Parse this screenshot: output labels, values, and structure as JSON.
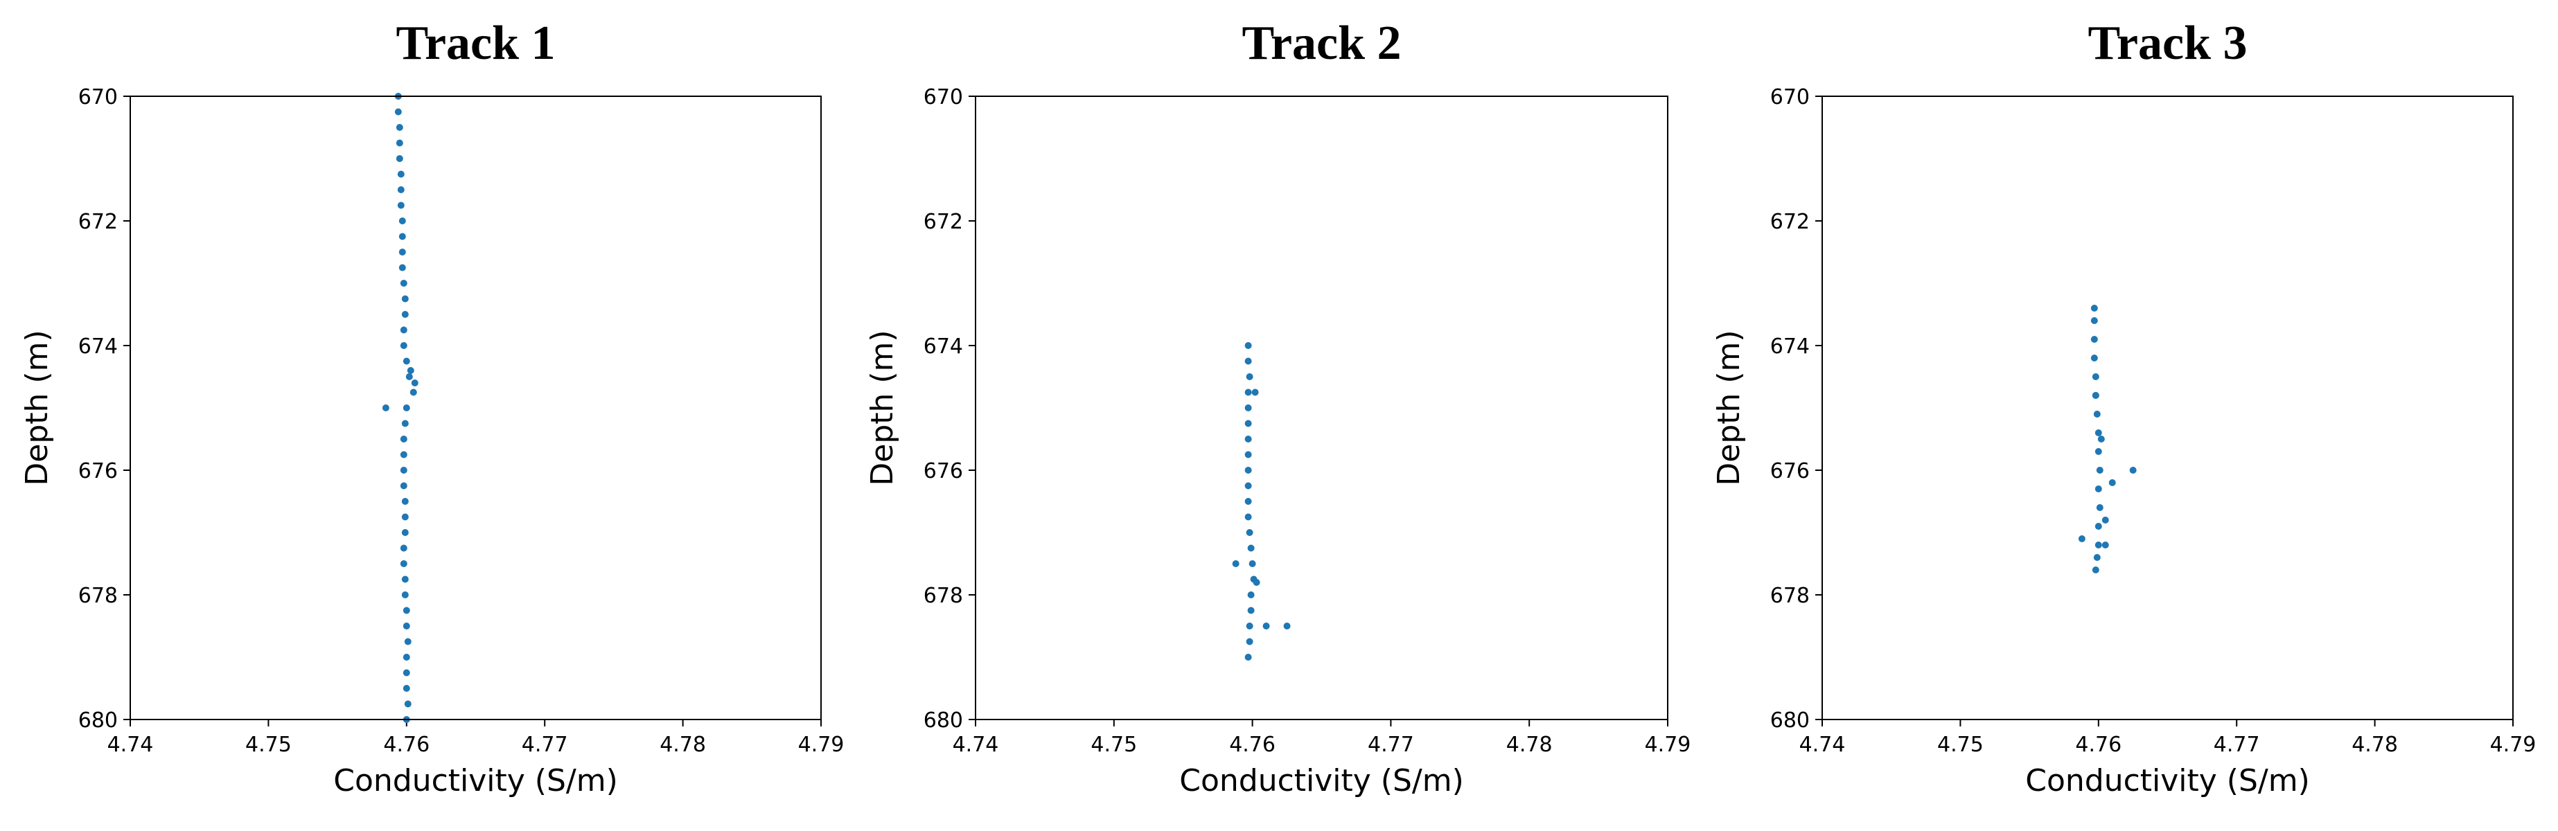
{
  "chart_data": [
    {
      "type": "scatter",
      "title": "Track 1",
      "xlabel": "Conductivity (S/m)",
      "ylabel": "Depth (m)",
      "color": "#1f77b4",
      "xlim": [
        4.74,
        4.79
      ],
      "xticks": [
        4.74,
        4.75,
        4.76,
        4.77,
        4.78,
        4.79
      ],
      "ylim": [
        670,
        680
      ],
      "yticks": [
        670,
        672,
        674,
        676,
        678,
        680
      ],
      "y_inverted": true,
      "x": [
        4.7594,
        4.7594,
        4.7595,
        4.7595,
        4.7595,
        4.7596,
        4.7596,
        4.7596,
        4.7597,
        4.7597,
        4.7597,
        4.7597,
        4.7598,
        4.7599,
        4.7599,
        4.7598,
        4.7598,
        4.76,
        4.7602,
        4.7605,
        4.76,
        4.7599,
        4.7598,
        4.7598,
        4.7598,
        4.7598,
        4.7599,
        4.7599,
        4.7599,
        4.7598,
        4.7598,
        4.7599,
        4.7599,
        4.76,
        4.76,
        4.7601,
        4.76,
        4.76,
        4.76,
        4.7601,
        4.76,
        4.7585,
        4.7606,
        4.7603
      ],
      "values": [
        670,
        670.25,
        670.5,
        670.75,
        671,
        671.25,
        671.5,
        671.75,
        672,
        672.25,
        672.5,
        672.75,
        673,
        673.25,
        673.5,
        673.75,
        674,
        674.25,
        674.5,
        674.75,
        675,
        675.25,
        675.5,
        675.75,
        676,
        676.25,
        676.5,
        676.75,
        677,
        677.25,
        677.5,
        677.75,
        678,
        678.25,
        678.5,
        678.75,
        679,
        679.25,
        679.5,
        679.75,
        680,
        675,
        674.6,
        674.4
      ]
    },
    {
      "type": "scatter",
      "title": "Track 2",
      "xlabel": "Conductivity (S/m)",
      "ylabel": "Depth (m)",
      "color": "#1f77b4",
      "xlim": [
        4.74,
        4.79
      ],
      "xticks": [
        4.74,
        4.75,
        4.76,
        4.77,
        4.78,
        4.79
      ],
      "ylim": [
        670,
        680
      ],
      "yticks": [
        670,
        672,
        674,
        676,
        678,
        680
      ],
      "y_inverted": true,
      "x": [
        4.7597,
        4.7597,
        4.7598,
        4.7597,
        4.7597,
        4.7597,
        4.7597,
        4.7597,
        4.7597,
        4.7597,
        4.7597,
        4.7597,
        4.7598,
        4.7599,
        4.76,
        4.7601,
        4.7599,
        4.7599,
        4.7598,
        4.7598,
        4.7597,
        4.7602,
        4.7588,
        4.7603,
        4.7625,
        4.761
      ],
      "values": [
        674,
        674.25,
        674.5,
        674.75,
        675,
        675.25,
        675.5,
        675.75,
        676,
        676.25,
        676.5,
        676.75,
        677,
        677.25,
        677.5,
        677.75,
        678,
        678.25,
        678.5,
        678.75,
        679,
        674.75,
        677.5,
        677.8,
        678.5,
        678.5
      ]
    },
    {
      "type": "scatter",
      "title": "Track 3",
      "xlabel": "Conductivity (S/m)",
      "ylabel": "Depth (m)",
      "color": "#1f77b4",
      "xlim": [
        4.74,
        4.79
      ],
      "xticks": [
        4.74,
        4.75,
        4.76,
        4.77,
        4.78,
        4.79
      ],
      "ylim": [
        670,
        680
      ],
      "yticks": [
        670,
        672,
        674,
        676,
        678,
        680
      ],
      "y_inverted": true,
      "x": [
        4.7597,
        4.7597,
        4.7597,
        4.7597,
        4.7598,
        4.7598,
        4.7599,
        4.76,
        4.76,
        4.7601,
        4.76,
        4.7601,
        4.76,
        4.76,
        4.7599,
        4.7598,
        4.7598,
        4.7602,
        4.7625,
        4.761,
        4.7605,
        4.7588,
        4.7605
      ],
      "values": [
        673.4,
        673.6,
        673.9,
        674.2,
        674.5,
        674.8,
        675.1,
        675.4,
        675.7,
        676,
        676.3,
        676.6,
        676.9,
        677.2,
        677.4,
        677.6,
        674.8,
        675.5,
        676,
        676.2,
        676.8,
        677.1,
        677.2
      ]
    }
  ]
}
